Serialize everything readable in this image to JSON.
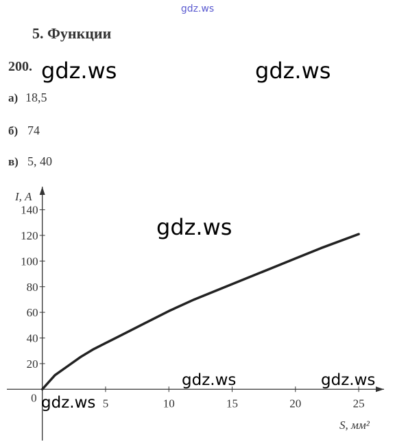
{
  "header": {
    "site": "gdz.ws",
    "title": "5.  Функции"
  },
  "problem": {
    "number": "200.",
    "answers": [
      {
        "letter": "а)",
        "text": "18,5"
      },
      {
        "letter": "б)",
        "text": "74"
      },
      {
        "letter": "в)",
        "text": "5,  40"
      }
    ]
  },
  "watermark": "gdz.ws",
  "chart_data": {
    "type": "line",
    "x_label": "S, мм²",
    "y_label": "I, А",
    "origin_label": "0",
    "x": [
      0,
      1,
      2,
      3,
      4,
      5,
      6,
      8,
      10,
      12,
      15,
      18,
      20,
      22,
      25
    ],
    "series": [
      {
        "color": "#222222",
        "values": [
          0,
          11,
          18,
          25,
          31,
          36,
          41,
          51,
          61,
          70,
          82,
          94,
          102,
          110,
          121
        ]
      }
    ],
    "xlim": [
      -2.8,
      27
    ],
    "ylim": [
      -40,
      158
    ],
    "xticks": [
      5,
      10,
      15,
      20,
      25
    ],
    "yticks": [
      20,
      40,
      60,
      80,
      100,
      120,
      140
    ],
    "grid": false
  }
}
